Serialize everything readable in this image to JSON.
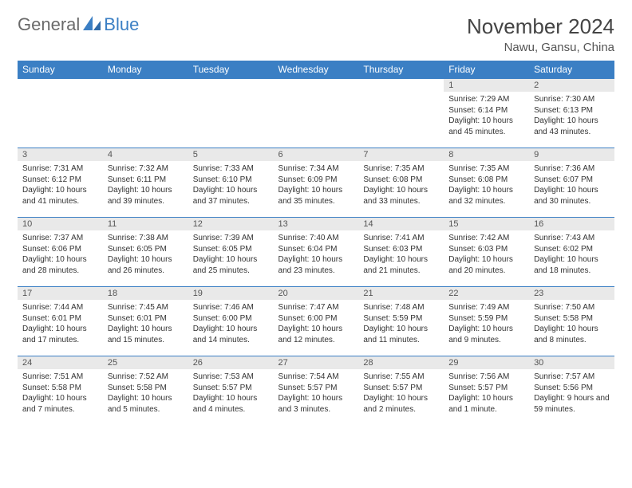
{
  "branding": {
    "text_left": "General",
    "text_right": "Blue",
    "logo_color": "#3b7fc4",
    "text_color_left": "#6a6a6a",
    "text_color_right": "#3b7fc4"
  },
  "title": {
    "month_year": "November 2024",
    "location": "Nawu, Gansu, China"
  },
  "colors": {
    "header_bg": "#3b7fc4",
    "header_text": "#ffffff",
    "daynum_bg": "#e9e9e9",
    "cell_border": "#3b7fc4",
    "body_text": "#333333"
  },
  "weekdays": [
    "Sunday",
    "Monday",
    "Tuesday",
    "Wednesday",
    "Thursday",
    "Friday",
    "Saturday"
  ],
  "weeks": [
    [
      {
        "blank": true
      },
      {
        "blank": true
      },
      {
        "blank": true
      },
      {
        "blank": true
      },
      {
        "blank": true
      },
      {
        "day": "1",
        "sunrise": "Sunrise: 7:29 AM",
        "sunset": "Sunset: 6:14 PM",
        "daylight": "Daylight: 10 hours and 45 minutes."
      },
      {
        "day": "2",
        "sunrise": "Sunrise: 7:30 AM",
        "sunset": "Sunset: 6:13 PM",
        "daylight": "Daylight: 10 hours and 43 minutes."
      }
    ],
    [
      {
        "day": "3",
        "sunrise": "Sunrise: 7:31 AM",
        "sunset": "Sunset: 6:12 PM",
        "daylight": "Daylight: 10 hours and 41 minutes."
      },
      {
        "day": "4",
        "sunrise": "Sunrise: 7:32 AM",
        "sunset": "Sunset: 6:11 PM",
        "daylight": "Daylight: 10 hours and 39 minutes."
      },
      {
        "day": "5",
        "sunrise": "Sunrise: 7:33 AM",
        "sunset": "Sunset: 6:10 PM",
        "daylight": "Daylight: 10 hours and 37 minutes."
      },
      {
        "day": "6",
        "sunrise": "Sunrise: 7:34 AM",
        "sunset": "Sunset: 6:09 PM",
        "daylight": "Daylight: 10 hours and 35 minutes."
      },
      {
        "day": "7",
        "sunrise": "Sunrise: 7:35 AM",
        "sunset": "Sunset: 6:08 PM",
        "daylight": "Daylight: 10 hours and 33 minutes."
      },
      {
        "day": "8",
        "sunrise": "Sunrise: 7:35 AM",
        "sunset": "Sunset: 6:08 PM",
        "daylight": "Daylight: 10 hours and 32 minutes."
      },
      {
        "day": "9",
        "sunrise": "Sunrise: 7:36 AM",
        "sunset": "Sunset: 6:07 PM",
        "daylight": "Daylight: 10 hours and 30 minutes."
      }
    ],
    [
      {
        "day": "10",
        "sunrise": "Sunrise: 7:37 AM",
        "sunset": "Sunset: 6:06 PM",
        "daylight": "Daylight: 10 hours and 28 minutes."
      },
      {
        "day": "11",
        "sunrise": "Sunrise: 7:38 AM",
        "sunset": "Sunset: 6:05 PM",
        "daylight": "Daylight: 10 hours and 26 minutes."
      },
      {
        "day": "12",
        "sunrise": "Sunrise: 7:39 AM",
        "sunset": "Sunset: 6:05 PM",
        "daylight": "Daylight: 10 hours and 25 minutes."
      },
      {
        "day": "13",
        "sunrise": "Sunrise: 7:40 AM",
        "sunset": "Sunset: 6:04 PM",
        "daylight": "Daylight: 10 hours and 23 minutes."
      },
      {
        "day": "14",
        "sunrise": "Sunrise: 7:41 AM",
        "sunset": "Sunset: 6:03 PM",
        "daylight": "Daylight: 10 hours and 21 minutes."
      },
      {
        "day": "15",
        "sunrise": "Sunrise: 7:42 AM",
        "sunset": "Sunset: 6:03 PM",
        "daylight": "Daylight: 10 hours and 20 minutes."
      },
      {
        "day": "16",
        "sunrise": "Sunrise: 7:43 AM",
        "sunset": "Sunset: 6:02 PM",
        "daylight": "Daylight: 10 hours and 18 minutes."
      }
    ],
    [
      {
        "day": "17",
        "sunrise": "Sunrise: 7:44 AM",
        "sunset": "Sunset: 6:01 PM",
        "daylight": "Daylight: 10 hours and 17 minutes."
      },
      {
        "day": "18",
        "sunrise": "Sunrise: 7:45 AM",
        "sunset": "Sunset: 6:01 PM",
        "daylight": "Daylight: 10 hours and 15 minutes."
      },
      {
        "day": "19",
        "sunrise": "Sunrise: 7:46 AM",
        "sunset": "Sunset: 6:00 PM",
        "daylight": "Daylight: 10 hours and 14 minutes."
      },
      {
        "day": "20",
        "sunrise": "Sunrise: 7:47 AM",
        "sunset": "Sunset: 6:00 PM",
        "daylight": "Daylight: 10 hours and 12 minutes."
      },
      {
        "day": "21",
        "sunrise": "Sunrise: 7:48 AM",
        "sunset": "Sunset: 5:59 PM",
        "daylight": "Daylight: 10 hours and 11 minutes."
      },
      {
        "day": "22",
        "sunrise": "Sunrise: 7:49 AM",
        "sunset": "Sunset: 5:59 PM",
        "daylight": "Daylight: 10 hours and 9 minutes."
      },
      {
        "day": "23",
        "sunrise": "Sunrise: 7:50 AM",
        "sunset": "Sunset: 5:58 PM",
        "daylight": "Daylight: 10 hours and 8 minutes."
      }
    ],
    [
      {
        "day": "24",
        "sunrise": "Sunrise: 7:51 AM",
        "sunset": "Sunset: 5:58 PM",
        "daylight": "Daylight: 10 hours and 7 minutes."
      },
      {
        "day": "25",
        "sunrise": "Sunrise: 7:52 AM",
        "sunset": "Sunset: 5:58 PM",
        "daylight": "Daylight: 10 hours and 5 minutes."
      },
      {
        "day": "26",
        "sunrise": "Sunrise: 7:53 AM",
        "sunset": "Sunset: 5:57 PM",
        "daylight": "Daylight: 10 hours and 4 minutes."
      },
      {
        "day": "27",
        "sunrise": "Sunrise: 7:54 AM",
        "sunset": "Sunset: 5:57 PM",
        "daylight": "Daylight: 10 hours and 3 minutes."
      },
      {
        "day": "28",
        "sunrise": "Sunrise: 7:55 AM",
        "sunset": "Sunset: 5:57 PM",
        "daylight": "Daylight: 10 hours and 2 minutes."
      },
      {
        "day": "29",
        "sunrise": "Sunrise: 7:56 AM",
        "sunset": "Sunset: 5:57 PM",
        "daylight": "Daylight: 10 hours and 1 minute."
      },
      {
        "day": "30",
        "sunrise": "Sunrise: 7:57 AM",
        "sunset": "Sunset: 5:56 PM",
        "daylight": "Daylight: 9 hours and 59 minutes."
      }
    ]
  ]
}
